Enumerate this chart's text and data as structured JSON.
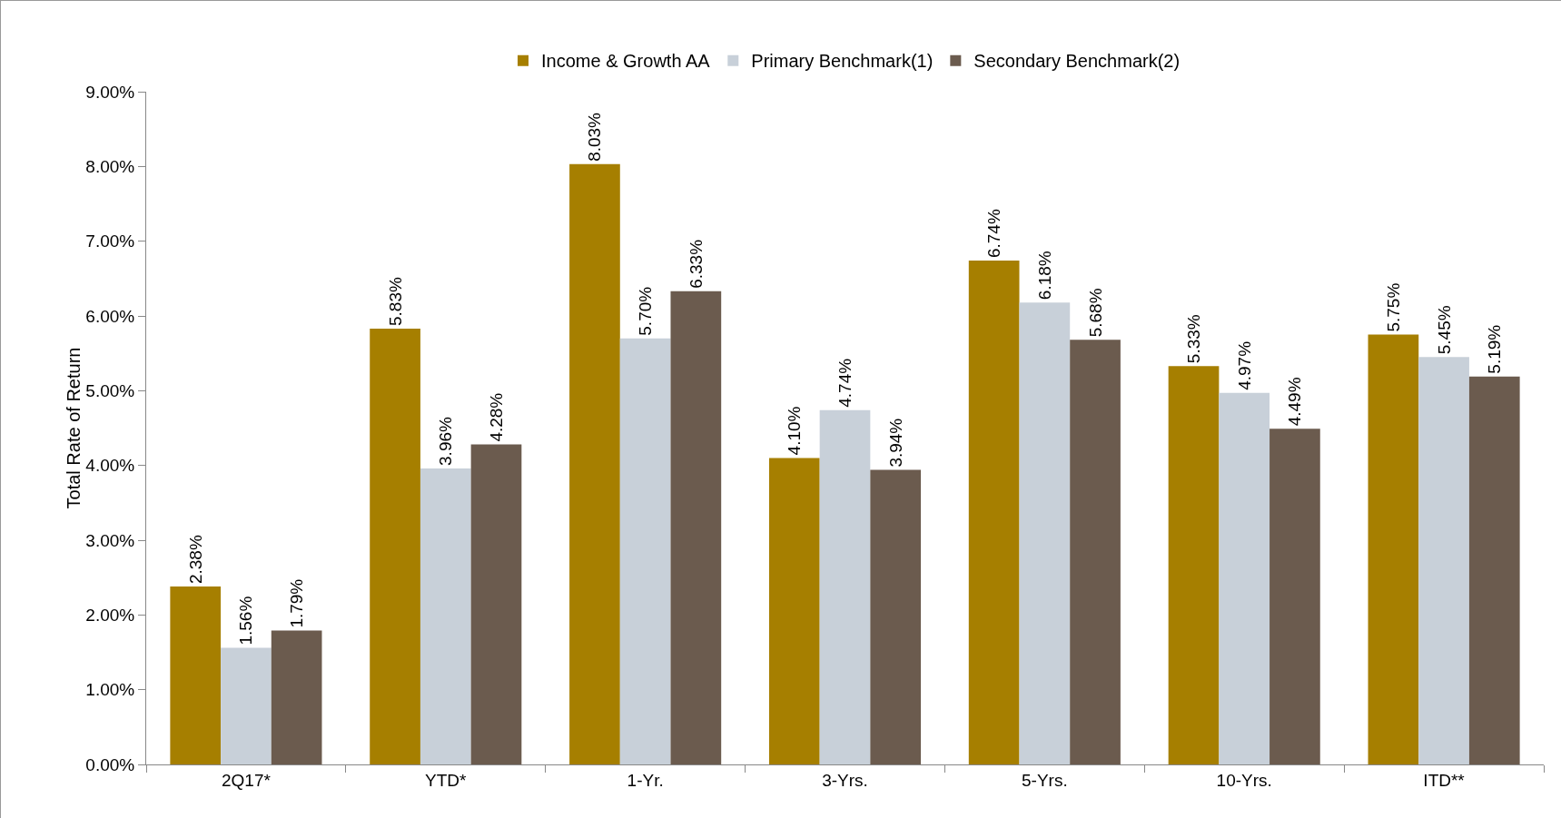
{
  "chart_data": {
    "type": "bar",
    "ylabel": "Total Rate of Return",
    "categories": [
      "2Q17*",
      "YTD*",
      "1-Yr.",
      "3-Yrs.",
      "5-Yrs.",
      "10-Yrs.",
      "ITD**"
    ],
    "series": [
      {
        "name": "Income & Growth AA",
        "color": "#a67f00",
        "values": [
          2.38,
          5.83,
          8.03,
          4.1,
          6.74,
          5.33,
          5.75
        ],
        "value_labels": [
          "2.38%",
          "5.83%",
          "8.03%",
          "4.10%",
          "6.74%",
          "5.33%",
          "5.75%"
        ]
      },
      {
        "name": "Primary Benchmark(1)",
        "color": "#c8d0d9",
        "values": [
          1.56,
          3.96,
          5.7,
          4.74,
          6.18,
          4.97,
          5.45
        ],
        "value_labels": [
          "1.56%",
          "3.96%",
          "5.70%",
          "4.74%",
          "6.18%",
          "4.97%",
          "5.45%"
        ]
      },
      {
        "name": "Secondary Benchmark(2)",
        "color": "#6b5b4e",
        "values": [
          1.79,
          4.28,
          6.33,
          3.94,
          5.68,
          4.49,
          5.19
        ],
        "value_labels": [
          "1.79%",
          "4.28%",
          "6.33%",
          "3.94%",
          "5.68%",
          "4.49%",
          "5.19%"
        ]
      }
    ],
    "ylim": [
      0,
      9
    ],
    "yticks": [
      {
        "value": 0,
        "label": "0.00%"
      },
      {
        "value": 1,
        "label": "1.00%"
      },
      {
        "value": 2,
        "label": "2.00%"
      },
      {
        "value": 3,
        "label": "3.00%"
      },
      {
        "value": 4,
        "label": "4.00%"
      },
      {
        "value": 5,
        "label": "5.00%"
      },
      {
        "value": 6,
        "label": "6.00%"
      },
      {
        "value": 7,
        "label": "7.00%"
      },
      {
        "value": 8,
        "label": "8.00%"
      },
      {
        "value": 9,
        "label": "9.00%"
      }
    ],
    "grid": false,
    "legend": "top"
  }
}
